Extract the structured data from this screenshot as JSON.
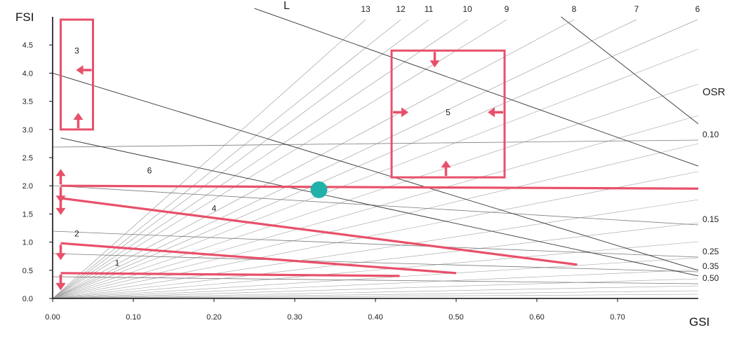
{
  "chart_data": {
    "type": "line",
    "title": "",
    "xlabel": "GSI",
    "ylabel": "FSI",
    "xlim": [
      0,
      0.8
    ],
    "ylim": [
      0,
      5
    ],
    "grid": false,
    "x_ticks": [
      "0.00",
      "0.10",
      "0.20",
      "0.30",
      "0.40",
      "0.50",
      "0.60",
      "0.70"
    ],
    "y_ticks": [
      "0.0",
      "0.5",
      "1.0",
      "1.5",
      "2.0",
      "2.5",
      "3.0",
      "3.5",
      "4.0",
      "4.5"
    ],
    "layer_lines": {
      "title": "L",
      "labels": [
        "13",
        "12",
        "11",
        "10",
        "9",
        "8",
        "7",
        "6"
      ],
      "values": [
        13,
        12,
        11,
        10,
        9,
        8,
        7,
        6
      ]
    },
    "osr_lines": {
      "title": "OSR",
      "labels": [
        "0.10",
        "0.15",
        "0.25",
        "0.35",
        "0.50"
      ],
      "values": [
        0.1,
        0.15,
        0.25,
        0.35,
        0.5
      ]
    },
    "annotation_lines": [
      {
        "x1": 0.25,
        "y1": 5.15,
        "x2": 0.8,
        "y2": 2.35
      },
      {
        "x1": 0.63,
        "y1": 5.0,
        "x2": 0.8,
        "y2": 3.1
      },
      {
        "x1": 0.0,
        "y1": 4.0,
        "x2": 0.8,
        "y2": 0.5
      },
      {
        "x1": 0.01,
        "y1": 2.85,
        "x2": 0.8,
        "y2": 0.4
      }
    ],
    "zones": [
      {
        "label": "1",
        "points": [
          [
            0.01,
            0.45
          ],
          [
            0.43,
            0.4
          ]
        ],
        "label_at": [
          0.08,
          0.58
        ]
      },
      {
        "label": "2",
        "points": [
          [
            0.01,
            0.98
          ],
          [
            0.5,
            0.45
          ]
        ],
        "label_at": [
          0.03,
          1.1
        ]
      },
      {
        "label": "3",
        "box": [
          0.01,
          0.05,
          3.0,
          4.95
        ],
        "label_at": [
          0.03,
          4.35
        ]
      },
      {
        "label": "4",
        "points": [
          [
            0.01,
            1.78
          ],
          [
            0.65,
            0.6
          ]
        ],
        "label_at": [
          0.2,
          1.55
        ]
      },
      {
        "label": "5",
        "box": [
          0.42,
          0.56,
          2.15,
          4.4
        ],
        "label_at": [
          0.49,
          3.25
        ]
      },
      {
        "label": "6",
        "points": [
          [
            0.01,
            2.0
          ],
          [
            0.8,
            1.95
          ]
        ],
        "label_at": [
          0.12,
          2.22
        ]
      }
    ],
    "point": {
      "x": 0.33,
      "y": 1.93
    },
    "colors": {
      "zone": "#e8506a",
      "point": "#20b2aa",
      "layer": "#a0a0a0",
      "osr": "#7a7a7a",
      "axis": "#111111"
    }
  }
}
